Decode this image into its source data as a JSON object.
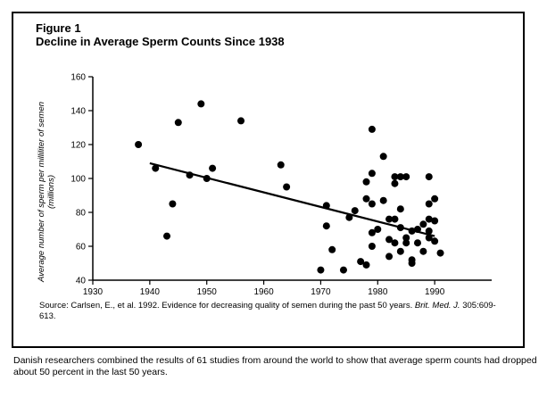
{
  "figure": {
    "label": "Figure 1",
    "title": "Decline in Average Sperm Counts Since 1938",
    "source": {
      "prefix": "Source: Carlsen, E., et al. 1992. Evidence for decreasing quality of semen during the past 50 years. ",
      "journal": "Brit. Med. J.",
      "suffix": " 305:609-613."
    },
    "caption": "Danish researchers combined the results of 61 studies from around the world to show that average sperm counts had dropped about 50 percent in the last 50 years."
  },
  "chart_data": {
    "type": "scatter",
    "title": "Decline in Average Sperm Counts Since 1938",
    "xlabel": "",
    "ylabel": "Average number of sperm per milliliter of semen (millions)",
    "ylabel_line1": "Average number of sperm per milliliter of semen",
    "ylabel_line2": "(millions)",
    "xlim": [
      1930,
      2000
    ],
    "ylim": [
      40,
      160
    ],
    "xticks": [
      1930,
      1940,
      1950,
      1960,
      1970,
      1980,
      1990
    ],
    "yticks": [
      40,
      60,
      80,
      100,
      120,
      140,
      160
    ],
    "grid": false,
    "legend": "none",
    "trend_line": {
      "x": [
        1940,
        1990
      ],
      "y": [
        109,
        66
      ]
    },
    "points": [
      {
        "x": 1938,
        "y": 120
      },
      {
        "x": 1941,
        "y": 106
      },
      {
        "x": 1943,
        "y": 66
      },
      {
        "x": 1944,
        "y": 85
      },
      {
        "x": 1945,
        "y": 133
      },
      {
        "x": 1947,
        "y": 102
      },
      {
        "x": 1949,
        "y": 144
      },
      {
        "x": 1950,
        "y": 100
      },
      {
        "x": 1951,
        "y": 106
      },
      {
        "x": 1956,
        "y": 134
      },
      {
        "x": 1963,
        "y": 108
      },
      {
        "x": 1964,
        "y": 95
      },
      {
        "x": 1970,
        "y": 46
      },
      {
        "x": 1971,
        "y": 84
      },
      {
        "x": 1971,
        "y": 72
      },
      {
        "x": 1972,
        "y": 58
      },
      {
        "x": 1974,
        "y": 46
      },
      {
        "x": 1975,
        "y": 77
      },
      {
        "x": 1976,
        "y": 81
      },
      {
        "x": 1977,
        "y": 51
      },
      {
        "x": 1978,
        "y": 98
      },
      {
        "x": 1978,
        "y": 88
      },
      {
        "x": 1978,
        "y": 49
      },
      {
        "x": 1979,
        "y": 129
      },
      {
        "x": 1979,
        "y": 103
      },
      {
        "x": 1979,
        "y": 85
      },
      {
        "x": 1979,
        "y": 68
      },
      {
        "x": 1979,
        "y": 60
      },
      {
        "x": 1980,
        "y": 70
      },
      {
        "x": 1981,
        "y": 113
      },
      {
        "x": 1981,
        "y": 87
      },
      {
        "x": 1982,
        "y": 76
      },
      {
        "x": 1982,
        "y": 64
      },
      {
        "x": 1982,
        "y": 54
      },
      {
        "x": 1983,
        "y": 101
      },
      {
        "x": 1983,
        "y": 97
      },
      {
        "x": 1983,
        "y": 76
      },
      {
        "x": 1983,
        "y": 62
      },
      {
        "x": 1984,
        "y": 101
      },
      {
        "x": 1984,
        "y": 82
      },
      {
        "x": 1984,
        "y": 71
      },
      {
        "x": 1984,
        "y": 57
      },
      {
        "x": 1985,
        "y": 101
      },
      {
        "x": 1985,
        "y": 65
      },
      {
        "x": 1985,
        "y": 62
      },
      {
        "x": 1986,
        "y": 69
      },
      {
        "x": 1986,
        "y": 52
      },
      {
        "x": 1986,
        "y": 50
      },
      {
        "x": 1987,
        "y": 70
      },
      {
        "x": 1987,
        "y": 62
      },
      {
        "x": 1988,
        "y": 73
      },
      {
        "x": 1988,
        "y": 57
      },
      {
        "x": 1989,
        "y": 101
      },
      {
        "x": 1989,
        "y": 85
      },
      {
        "x": 1989,
        "y": 76
      },
      {
        "x": 1989,
        "y": 69
      },
      {
        "x": 1989,
        "y": 65
      },
      {
        "x": 1990,
        "y": 88
      },
      {
        "x": 1990,
        "y": 75
      },
      {
        "x": 1990,
        "y": 63
      },
      {
        "x": 1991,
        "y": 56
      }
    ]
  }
}
